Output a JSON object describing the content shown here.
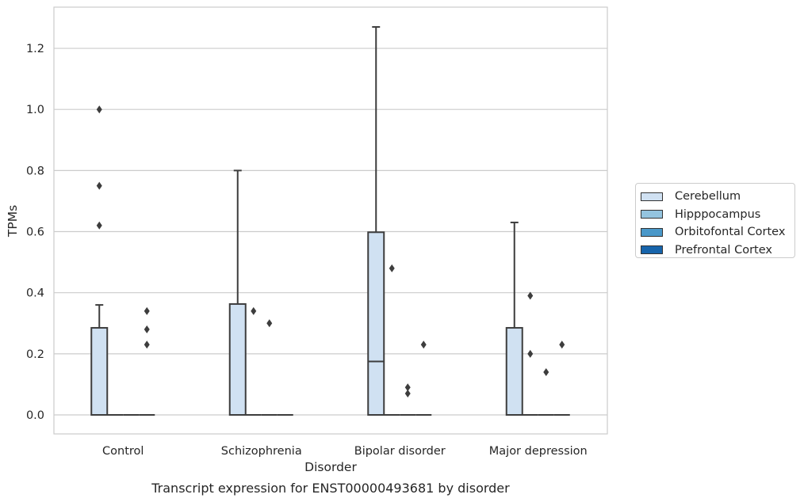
{
  "chart_data": {
    "type": "box",
    "caption": "Transcript expression for ENST00000493681 by disorder",
    "xlabel": "Disorder",
    "ylabel": "TPMs",
    "categories": [
      "Control",
      "Schizophrenia",
      "Bipolar disorder",
      "Major depression"
    ],
    "ylim": [
      -0.063,
      1.335
    ],
    "yticks": [
      0.0,
      0.2,
      0.4,
      0.6,
      0.8,
      1.0,
      1.2
    ],
    "ytick_labels": [
      "0.0",
      "0.2",
      "0.4",
      "0.6",
      "0.8",
      "1.0",
      "1.2"
    ],
    "grid": "horizontal",
    "legend": {
      "placement": "outside-right",
      "entries": [
        {
          "label": "Cerebellum",
          "color": "#d0e1f2"
        },
        {
          "label": "Hipppocampus",
          "color": "#94c4df"
        },
        {
          "label": "Orbitofontal Cortex",
          "color": "#4a98c9"
        },
        {
          "label": "Prefrontal Cortex",
          "color": "#1764ab"
        }
      ]
    },
    "series": [
      {
        "name": "Cerebellum",
        "color": "#d0e1f2",
        "boxes": [
          {
            "q1": 0.0,
            "median": 0.0,
            "q3": 0.285,
            "whisker_low": 0.0,
            "whisker_high": 0.36,
            "outliers": [
              0.62,
              0.75,
              1.0
            ]
          },
          {
            "q1": 0.0,
            "median": 0.0,
            "q3": 0.363,
            "whisker_low": 0.0,
            "whisker_high": 0.8,
            "outliers": []
          },
          {
            "q1": 0.0,
            "median": 0.175,
            "q3": 0.598,
            "whisker_low": 0.0,
            "whisker_high": 1.27,
            "outliers": []
          },
          {
            "q1": 0.0,
            "median": 0.0,
            "q3": 0.285,
            "whisker_low": 0.0,
            "whisker_high": 0.63,
            "outliers": []
          }
        ]
      },
      {
        "name": "Hipppocampus",
        "color": "#94c4df",
        "boxes": [
          {
            "q1": 0.0,
            "median": 0.0,
            "q3": 0.0,
            "whisker_low": 0.0,
            "whisker_high": 0.0,
            "outliers": []
          },
          {
            "q1": 0.0,
            "median": 0.0,
            "q3": 0.0,
            "whisker_low": 0.0,
            "whisker_high": 0.0,
            "outliers": [
              0.34
            ]
          },
          {
            "q1": 0.0,
            "median": 0.0,
            "q3": 0.0,
            "whisker_low": 0.0,
            "whisker_high": 0.0,
            "outliers": [
              0.48
            ]
          },
          {
            "q1": 0.0,
            "median": 0.0,
            "q3": 0.0,
            "whisker_low": 0.0,
            "whisker_high": 0.0,
            "outliers": [
              0.2,
              0.39
            ]
          }
        ]
      },
      {
        "name": "Orbitofontal Cortex",
        "color": "#4a98c9",
        "boxes": [
          {
            "q1": 0.0,
            "median": 0.0,
            "q3": 0.0,
            "whisker_low": 0.0,
            "whisker_high": 0.0,
            "outliers": []
          },
          {
            "q1": 0.0,
            "median": 0.0,
            "q3": 0.0,
            "whisker_low": 0.0,
            "whisker_high": 0.0,
            "outliers": [
              0.3
            ]
          },
          {
            "q1": 0.0,
            "median": 0.0,
            "q3": 0.0,
            "whisker_low": 0.0,
            "whisker_high": 0.0,
            "outliers": [
              0.07,
              0.09
            ]
          },
          {
            "q1": 0.0,
            "median": 0.0,
            "q3": 0.0,
            "whisker_low": 0.0,
            "whisker_high": 0.0,
            "outliers": [
              0.14
            ]
          }
        ]
      },
      {
        "name": "Prefrontal Cortex",
        "color": "#1764ab",
        "boxes": [
          {
            "q1": 0.0,
            "median": 0.0,
            "q3": 0.0,
            "whisker_low": 0.0,
            "whisker_high": 0.0,
            "outliers": [
              0.23,
              0.28,
              0.34
            ]
          },
          {
            "q1": 0.0,
            "median": 0.0,
            "q3": 0.0,
            "whisker_low": 0.0,
            "whisker_high": 0.0,
            "outliers": []
          },
          {
            "q1": 0.0,
            "median": 0.0,
            "q3": 0.0,
            "whisker_low": 0.0,
            "whisker_high": 0.0,
            "outliers": [
              0.23
            ]
          },
          {
            "q1": 0.0,
            "median": 0.0,
            "q3": 0.0,
            "whisker_low": 0.0,
            "whisker_high": 0.0,
            "outliers": [
              0.23
            ]
          }
        ]
      }
    ]
  }
}
